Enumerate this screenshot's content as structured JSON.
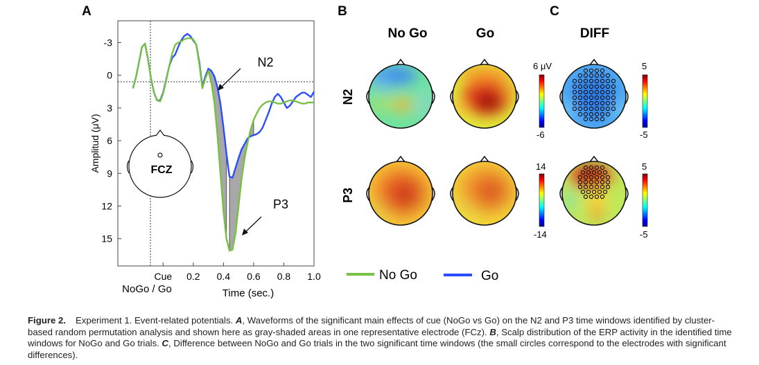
{
  "panels": {
    "a": "A",
    "b": "B",
    "c": "C"
  },
  "chart_data": [
    {
      "type": "line",
      "panel": "A",
      "xlabel": "Time (sec.)",
      "ylabel": "Amplitud (μV)",
      "xlim": [
        -0.3,
        1.0
      ],
      "ylim": [
        -5,
        17.5
      ],
      "y_inverted": true,
      "x_ticks": [
        {
          "v": 0.0,
          "label": "Cue"
        },
        {
          "v": 0.2,
          "label": "0.2"
        },
        {
          "v": 0.4,
          "label": "0.4"
        },
        {
          "v": 0.6,
          "label": "0.6"
        },
        {
          "v": 0.8,
          "label": "0.8"
        },
        {
          "v": 1.0,
          "label": "1.0"
        }
      ],
      "x_sublabel": "NoGo / Go",
      "y_ticks": [
        -3,
        0,
        3,
        6,
        9,
        12,
        15
      ],
      "cue_line_x": 0.0,
      "zero_line_y": 0,
      "electrode_label": "FCZ",
      "annotations": [
        {
          "text": "N2"
        },
        {
          "text": "P3"
        }
      ],
      "series": [
        {
          "name": "No Go",
          "color": "#77c043",
          "x": [
            -0.2,
            -0.18,
            -0.16,
            -0.14,
            -0.12,
            -0.1,
            -0.08,
            -0.06,
            -0.04,
            -0.02,
            0.0,
            0.02,
            0.04,
            0.06,
            0.08,
            0.1,
            0.12,
            0.14,
            0.16,
            0.18,
            0.2,
            0.22,
            0.24,
            0.26,
            0.28,
            0.3,
            0.32,
            0.34,
            0.36,
            0.38,
            0.4,
            0.42,
            0.44,
            0.46,
            0.48,
            0.5,
            0.52,
            0.54,
            0.56,
            0.58,
            0.6,
            0.62,
            0.64,
            0.66,
            0.68,
            0.7,
            0.72,
            0.74,
            0.76,
            0.78,
            0.8,
            0.82,
            0.84,
            0.86,
            0.88,
            0.9,
            0.92,
            0.94,
            0.96,
            0.98,
            1.0
          ],
          "y": [
            1.2,
            0.2,
            -1.2,
            -2.6,
            -2.9,
            -1.5,
            0.3,
            1.6,
            2.3,
            2.4,
            1.7,
            0.5,
            -0.8,
            -2.0,
            -2.8,
            -3.0,
            -3.1,
            -3.3,
            -3.4,
            -3.4,
            -3.3,
            -2.8,
            -1.0,
            1.2,
            0.3,
            -0.4,
            0.7,
            2.5,
            5.5,
            9.0,
            12.5,
            15.0,
            16.1,
            16.0,
            14.5,
            12.0,
            9.5,
            7.6,
            6.2,
            5.0,
            4.1,
            3.5,
            3.0,
            2.7,
            2.5,
            2.4,
            2.4,
            2.5,
            2.6,
            2.6,
            2.5,
            2.4,
            2.3,
            2.3,
            2.4,
            2.5,
            2.6,
            2.6,
            2.5,
            2.5,
            2.5
          ]
        },
        {
          "name": "Go",
          "color": "#2a4dff",
          "x": [
            -0.2,
            -0.18,
            -0.16,
            -0.14,
            -0.12,
            -0.1,
            -0.08,
            -0.06,
            -0.04,
            -0.02,
            0.0,
            0.02,
            0.04,
            0.06,
            0.08,
            0.1,
            0.12,
            0.14,
            0.16,
            0.18,
            0.2,
            0.22,
            0.24,
            0.26,
            0.28,
            0.3,
            0.32,
            0.34,
            0.36,
            0.38,
            0.4,
            0.42,
            0.44,
            0.46,
            0.48,
            0.5,
            0.52,
            0.54,
            0.56,
            0.58,
            0.6,
            0.62,
            0.64,
            0.66,
            0.68,
            0.7,
            0.72,
            0.74,
            0.76,
            0.78,
            0.8,
            0.82,
            0.84,
            0.86,
            0.88,
            0.9,
            0.92,
            0.94,
            0.96,
            0.98,
            1.0
          ],
          "y": [
            1.2,
            0.2,
            -1.2,
            -2.6,
            -2.9,
            -1.5,
            0.3,
            1.6,
            2.3,
            2.3,
            1.6,
            0.4,
            -0.8,
            -1.6,
            -1.9,
            -2.6,
            -3.2,
            -3.6,
            -3.8,
            -3.6,
            -3.2,
            -2.8,
            -1.2,
            1.0,
            0.1,
            -0.6,
            -0.4,
            0.1,
            1.1,
            2.6,
            4.8,
            7.2,
            9.3,
            9.4,
            8.5,
            7.6,
            6.8,
            6.3,
            5.8,
            5.6,
            5.5,
            5.4,
            5.2,
            4.8,
            4.1,
            3.4,
            2.6,
            2.0,
            1.7,
            2.0,
            2.5,
            3.0,
            2.8,
            2.4,
            2.0,
            1.8,
            1.6,
            1.6,
            1.8,
            2.0,
            1.5
          ]
        }
      ],
      "shaded_windows": [
        [
          0.28,
          0.42
        ],
        [
          0.44,
          0.6
        ]
      ]
    },
    {
      "type": "heatmap",
      "panel": "B",
      "columns": [
        "No Go",
        "Go"
      ],
      "rows": [
        "N2",
        "P3"
      ],
      "colorbars": [
        {
          "row": "N2",
          "max": "6 μV",
          "min": "-6"
        },
        {
          "row": "P3",
          "max": "14",
          "min": "-14"
        }
      ]
    },
    {
      "type": "heatmap",
      "panel": "C",
      "columns": [
        "DIFF"
      ],
      "rows": [
        "N2",
        "P3"
      ],
      "colorbars": [
        {
          "row": "N2",
          "max": "5",
          "min": "-5"
        },
        {
          "row": "P3",
          "max": "5",
          "min": "-5"
        }
      ]
    }
  ],
  "legend": [
    {
      "label": "No Go",
      "color": "#77c043"
    },
    {
      "label": "Go",
      "color": "#2a4dff"
    }
  ],
  "caption": {
    "label": "Figure 2.",
    "parts": [
      {
        "t": "Experiment 1. Event-related potentials. ",
        "b": false
      },
      {
        "t": "A",
        "b": true
      },
      {
        "t": ", Waveforms of the significant main effects of cue (NoGo vs Go) on the N2 and P3 time windows identified by cluster-based random permutation analysis and shown here as gray-shaded areas in one representative electrode (FCz). ",
        "b": false
      },
      {
        "t": "B",
        "b": true
      },
      {
        "t": ", Scalp distribution of the ERP activity in the identified time windows for NoGo and Go trials. ",
        "b": false
      },
      {
        "t": "C",
        "b": true
      },
      {
        "t": ", Difference between NoGo and Go trials in the two significant time windows (the small circles correspond to the electrodes with significant differences).",
        "b": false
      }
    ]
  }
}
